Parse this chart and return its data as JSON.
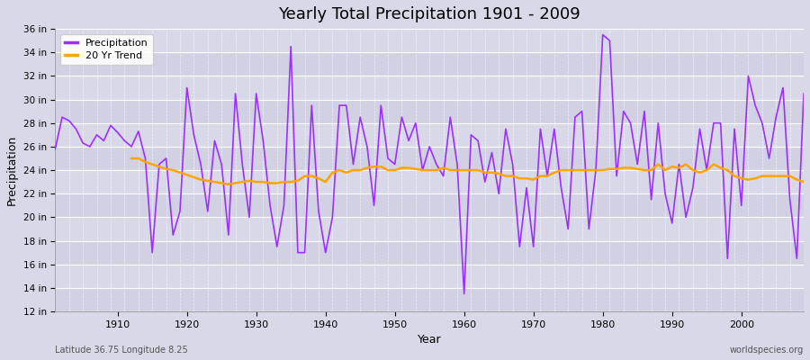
{
  "title": "Yearly Total Precipitation 1901 - 2009",
  "xlabel": "Year",
  "ylabel": "Precipitation",
  "lat_lon_label": "Latitude 36.75 Longitude 8.25",
  "source_label": "worldspecies.org",
  "ylim": [
    12,
    36
  ],
  "yticks": [
    12,
    14,
    16,
    18,
    20,
    22,
    24,
    26,
    28,
    30,
    32,
    34,
    36
  ],
  "ytick_labels": [
    "12 in",
    "14 in",
    "16 in",
    "18 in",
    "20 in",
    "22 in",
    "24 in",
    "26 in",
    "28 in",
    "30 in",
    "32 in",
    "34 in",
    "36 in"
  ],
  "xlim": [
    1901,
    2009
  ],
  "precip_color": "#9B30FF",
  "trend_color": "#FFA500",
  "bg_color": "#D8D8E8",
  "plot_bg_color": "#D8D8E8",
  "grid_color": "#FFFFFF",
  "precip_legend": "Precipitation",
  "trend_legend": "20 Yr Trend",
  "years": [
    1901,
    1902,
    1903,
    1904,
    1905,
    1906,
    1907,
    1908,
    1909,
    1910,
    1911,
    1912,
    1913,
    1914,
    1915,
    1916,
    1917,
    1918,
    1919,
    1920,
    1921,
    1922,
    1923,
    1924,
    1925,
    1926,
    1927,
    1928,
    1929,
    1930,
    1931,
    1932,
    1933,
    1934,
    1935,
    1936,
    1937,
    1938,
    1939,
    1940,
    1941,
    1942,
    1943,
    1944,
    1945,
    1946,
    1947,
    1948,
    1949,
    1950,
    1951,
    1952,
    1953,
    1954,
    1955,
    1956,
    1957,
    1958,
    1959,
    1960,
    1961,
    1962,
    1963,
    1964,
    1965,
    1966,
    1967,
    1968,
    1969,
    1970,
    1971,
    1972,
    1973,
    1974,
    1975,
    1976,
    1977,
    1978,
    1979,
    1980,
    1981,
    1982,
    1983,
    1984,
    1985,
    1986,
    1987,
    1988,
    1989,
    1990,
    1991,
    1992,
    1993,
    1994,
    1995,
    1996,
    1997,
    1998,
    1999,
    2000,
    2001,
    2002,
    2003,
    2004,
    2005,
    2006,
    2007,
    2008,
    2009
  ],
  "precip": [
    25.8,
    28.5,
    28.2,
    27.5,
    26.3,
    26.0,
    27.0,
    26.5,
    27.8,
    27.2,
    26.5,
    26.0,
    27.3,
    25.0,
    17.0,
    24.5,
    25.0,
    18.5,
    20.5,
    31.0,
    27.0,
    24.5,
    20.5,
    26.5,
    24.5,
    18.5,
    30.5,
    24.5,
    20.0,
    30.5,
    26.5,
    21.0,
    17.5,
    21.0,
    34.5,
    17.0,
    17.0,
    29.5,
    20.5,
    17.0,
    20.0,
    29.5,
    29.5,
    24.5,
    28.5,
    26.0,
    21.0,
    29.5,
    25.0,
    24.5,
    28.5,
    26.5,
    28.0,
    24.0,
    26.0,
    24.5,
    23.5,
    28.5,
    24.5,
    13.5,
    27.0,
    26.5,
    23.0,
    25.5,
    22.0,
    27.5,
    24.5,
    17.5,
    22.5,
    17.5,
    27.5,
    23.5,
    27.5,
    22.5,
    19.0,
    28.5,
    29.0,
    19.0,
    24.0,
    35.5,
    35.0,
    23.5,
    29.0,
    28.0,
    24.5,
    29.0,
    21.5,
    28.0,
    22.0,
    19.5,
    24.5,
    20.0,
    22.5,
    27.5,
    24.0,
    28.0,
    28.0,
    16.5,
    27.5,
    21.0,
    32.0,
    29.5,
    28.0,
    25.0,
    28.5,
    31.0,
    21.5,
    16.5,
    30.5
  ],
  "trend_years": [
    1912,
    1913,
    1914,
    1915,
    1916,
    1917,
    1918,
    1919,
    1920,
    1921,
    1922,
    1923,
    1924,
    1925,
    1926,
    1927,
    1928,
    1929,
    1930,
    1931,
    1932,
    1933,
    1934,
    1935,
    1936,
    1937,
    1938,
    1939,
    1940,
    1941,
    1942,
    1943,
    1944,
    1945,
    1946,
    1947,
    1948,
    1949,
    1950,
    1951,
    1952,
    1953,
    1954,
    1955,
    1956,
    1957,
    1958,
    1959,
    1960,
    1961,
    1962,
    1963,
    1964,
    1965,
    1966,
    1967,
    1968,
    1969,
    1970,
    1971,
    1972,
    1973,
    1974,
    1975,
    1976,
    1977,
    1978,
    1979,
    1980,
    1981,
    1982,
    1983,
    1984,
    1985,
    1986,
    1987,
    1988,
    1989,
    1990,
    1991,
    1992,
    1993,
    1994,
    1995,
    1996,
    1997,
    1998,
    1999,
    2000,
    2001,
    2002,
    2003,
    2004,
    2005,
    2006,
    2007,
    2008,
    2009
  ],
  "trend": [
    25.0,
    25.0,
    24.7,
    24.5,
    24.3,
    24.1,
    24.0,
    23.8,
    23.6,
    23.4,
    23.2,
    23.1,
    23.0,
    22.9,
    22.8,
    22.9,
    23.0,
    23.1,
    23.0,
    23.0,
    22.9,
    22.9,
    23.0,
    23.0,
    23.1,
    23.5,
    23.5,
    23.3,
    23.0,
    23.8,
    24.0,
    23.8,
    24.0,
    24.0,
    24.2,
    24.3,
    24.3,
    24.0,
    24.0,
    24.2,
    24.2,
    24.1,
    24.0,
    24.0,
    24.0,
    24.2,
    24.0,
    24.0,
    24.0,
    24.0,
    24.0,
    23.8,
    23.8,
    23.7,
    23.5,
    23.5,
    23.3,
    23.3,
    23.2,
    23.5,
    23.5,
    23.8,
    24.0,
    24.0,
    24.0,
    24.0,
    24.0,
    24.0,
    24.0,
    24.1,
    24.1,
    24.2,
    24.2,
    24.1,
    24.0,
    24.0,
    24.5,
    24.0,
    24.3,
    24.2,
    24.5,
    24.0,
    23.8,
    24.0,
    24.5,
    24.2,
    24.0,
    23.5,
    23.3,
    23.2,
    23.3,
    23.5,
    23.5,
    23.5,
    23.5,
    23.5,
    23.2,
    23.0
  ]
}
